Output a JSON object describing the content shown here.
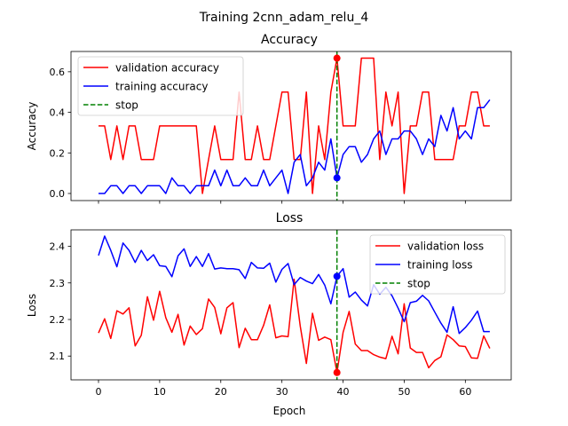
{
  "figure": {
    "suptitle": "Training 2cnn_adam_relu_4"
  },
  "chart_data": [
    {
      "type": "line",
      "title": "Accuracy",
      "xlabel": "",
      "ylabel": "Accuracy",
      "xlim": [
        -4.5,
        67.5
      ],
      "ylim": [
        -0.035,
        0.7
      ],
      "xticks": [
        0,
        10,
        20,
        30,
        40,
        50,
        60
      ],
      "yticks": [
        0.0,
        0.2,
        0.4,
        0.6
      ],
      "ytick_labels": [
        "0.0",
        "0.2",
        "0.4",
        "0.6"
      ],
      "show_xtick_labels": false,
      "grid": false,
      "legend_position": "upper-left",
      "series": [
        {
          "name": "validation accuracy",
          "color": "#ff0000",
          "x": [
            0,
            1,
            2,
            3,
            4,
            5,
            6,
            7,
            8,
            9,
            10,
            11,
            12,
            13,
            14,
            15,
            16,
            17,
            18,
            19,
            20,
            21,
            22,
            23,
            24,
            25,
            26,
            27,
            28,
            29,
            30,
            31,
            32,
            33,
            34,
            35,
            36,
            37,
            38,
            39,
            40,
            41,
            42,
            43,
            44,
            45,
            46,
            47,
            48,
            49,
            50,
            51,
            52,
            53,
            54,
            55,
            56,
            57,
            58,
            59,
            60,
            61,
            62,
            63,
            64
          ],
          "values": [
            0.333,
            0.333,
            0.167,
            0.333,
            0.167,
            0.333,
            0.333,
            0.167,
            0.167,
            0.167,
            0.333,
            0.333,
            0.333,
            0.333,
            0.333,
            0.333,
            0.333,
            0.0,
            0.167,
            0.333,
            0.167,
            0.167,
            0.167,
            0.5,
            0.167,
            0.167,
            0.333,
            0.167,
            0.167,
            0.333,
            0.5,
            0.5,
            0.167,
            0.167,
            0.5,
            0.0,
            0.333,
            0.167,
            0.5,
            0.667,
            0.333,
            0.333,
            0.333,
            0.667,
            0.667,
            0.667,
            0.167,
            0.5,
            0.333,
            0.5,
            0.0,
            0.333,
            0.333,
            0.5,
            0.5,
            0.167,
            0.167,
            0.167,
            0.167,
            0.333,
            0.333,
            0.5,
            0.5,
            0.333,
            0.333
          ]
        },
        {
          "name": "training accuracy",
          "color": "#0000ff",
          "x": [
            0,
            1,
            2,
            3,
            4,
            5,
            6,
            7,
            8,
            9,
            10,
            11,
            12,
            13,
            14,
            15,
            16,
            17,
            18,
            19,
            20,
            21,
            22,
            23,
            24,
            25,
            26,
            27,
            28,
            29,
            30,
            31,
            32,
            33,
            34,
            35,
            36,
            37,
            38,
            39,
            40,
            41,
            42,
            43,
            44,
            45,
            46,
            47,
            48,
            49,
            50,
            51,
            52,
            53,
            54,
            55,
            56,
            57,
            58,
            59,
            60,
            61,
            62,
            63,
            64
          ],
          "values": [
            0.0,
            0.0,
            0.038,
            0.038,
            0.0,
            0.038,
            0.038,
            0.0,
            0.038,
            0.038,
            0.038,
            0.0,
            0.077,
            0.038,
            0.038,
            0.0,
            0.038,
            0.038,
            0.038,
            0.115,
            0.038,
            0.115,
            0.038,
            0.038,
            0.077,
            0.038,
            0.038,
            0.115,
            0.038,
            0.077,
            0.115,
            0.0,
            0.154,
            0.192,
            0.038,
            0.077,
            0.154,
            0.115,
            0.269,
            0.077,
            0.192,
            0.231,
            0.231,
            0.154,
            0.192,
            0.269,
            0.308,
            0.192,
            0.269,
            0.269,
            0.308,
            0.308,
            0.269,
            0.192,
            0.269,
            0.231,
            0.385,
            0.308,
            0.423,
            0.269,
            0.308,
            0.269,
            0.423,
            0.423,
            0.462
          ]
        },
        {
          "name": "stop",
          "color": "#008000",
          "style": "dashed",
          "x": 39
        }
      ],
      "markers": [
        {
          "x": 39,
          "value": 0.667,
          "color": "#ff0000"
        },
        {
          "x": 39,
          "value": 0.077,
          "color": "#0000ff"
        }
      ]
    },
    {
      "type": "line",
      "title": "Loss",
      "xlabel": "Epoch",
      "ylabel": "Loss",
      "xlim": [
        -4.5,
        67.5
      ],
      "ylim": [
        2.035,
        2.445
      ],
      "xticks": [
        0,
        10,
        20,
        30,
        40,
        50,
        60
      ],
      "xtick_labels": [
        "0",
        "10",
        "20",
        "30",
        "40",
        "50",
        "60"
      ],
      "yticks": [
        2.1,
        2.2,
        2.3,
        2.4
      ],
      "ytick_labels": [
        "2.1",
        "2.2",
        "2.3",
        "2.4"
      ],
      "show_xtick_labels": true,
      "grid": false,
      "legend_position": "upper-right",
      "series": [
        {
          "name": "validation loss",
          "color": "#ff0000",
          "x": [
            0,
            1,
            2,
            3,
            4,
            5,
            6,
            7,
            8,
            9,
            10,
            11,
            12,
            13,
            14,
            15,
            16,
            17,
            18,
            19,
            20,
            21,
            22,
            23,
            24,
            25,
            26,
            27,
            28,
            29,
            30,
            31,
            32,
            33,
            34,
            35,
            36,
            37,
            38,
            39,
            40,
            41,
            42,
            43,
            44,
            45,
            46,
            47,
            48,
            49,
            50,
            51,
            52,
            53,
            54,
            55,
            56,
            57,
            58,
            59,
            60,
            61,
            62,
            63,
            64
          ],
          "values": [
            2.163,
            2.202,
            2.148,
            2.224,
            2.215,
            2.232,
            2.128,
            2.157,
            2.262,
            2.198,
            2.277,
            2.205,
            2.165,
            2.214,
            2.13,
            2.182,
            2.159,
            2.175,
            2.256,
            2.233,
            2.161,
            2.232,
            2.246,
            2.123,
            2.176,
            2.145,
            2.145,
            2.184,
            2.24,
            2.15,
            2.155,
            2.153,
            2.31,
            2.182,
            2.08,
            2.217,
            2.143,
            2.152,
            2.145,
            2.055,
            2.165,
            2.222,
            2.133,
            2.115,
            2.115,
            2.104,
            2.097,
            2.093,
            2.154,
            2.106,
            2.243,
            2.122,
            2.11,
            2.11,
            2.068,
            2.088,
            2.098,
            2.158,
            2.145,
            2.128,
            2.126,
            2.095,
            2.094,
            2.155,
            2.121
          ]
        },
        {
          "name": "training loss",
          "color": "#0000ff",
          "x": [
            0,
            1,
            2,
            3,
            4,
            5,
            6,
            7,
            8,
            9,
            10,
            11,
            12,
            13,
            14,
            15,
            16,
            17,
            18,
            19,
            20,
            21,
            22,
            23,
            24,
            25,
            26,
            27,
            28,
            29,
            30,
            31,
            32,
            33,
            34,
            35,
            36,
            37,
            38,
            39,
            40,
            41,
            42,
            43,
            44,
            45,
            46,
            47,
            48,
            49,
            50,
            51,
            52,
            53,
            54,
            55,
            56,
            57,
            58,
            59,
            60,
            61,
            62,
            63,
            64
          ],
          "values": [
            2.375,
            2.428,
            2.389,
            2.344,
            2.409,
            2.389,
            2.356,
            2.389,
            2.361,
            2.377,
            2.347,
            2.345,
            2.317,
            2.374,
            2.393,
            2.345,
            2.372,
            2.345,
            2.38,
            2.338,
            2.341,
            2.339,
            2.339,
            2.336,
            2.312,
            2.356,
            2.341,
            2.34,
            2.354,
            2.302,
            2.337,
            2.353,
            2.295,
            2.315,
            2.305,
            2.298,
            2.323,
            2.294,
            2.243,
            2.318,
            2.339,
            2.261,
            2.275,
            2.253,
            2.237,
            2.295,
            2.269,
            2.288,
            2.265,
            2.231,
            2.194,
            2.246,
            2.25,
            2.266,
            2.251,
            2.22,
            2.19,
            2.165,
            2.235,
            2.162,
            2.178,
            2.198,
            2.223,
            2.167,
            2.167
          ]
        },
        {
          "name": "stop",
          "color": "#008000",
          "style": "dashed",
          "x": 39
        }
      ],
      "markers": [
        {
          "x": 39,
          "value": 2.055,
          "color": "#ff0000"
        },
        {
          "x": 39,
          "value": 2.318,
          "color": "#0000ff"
        }
      ]
    }
  ]
}
